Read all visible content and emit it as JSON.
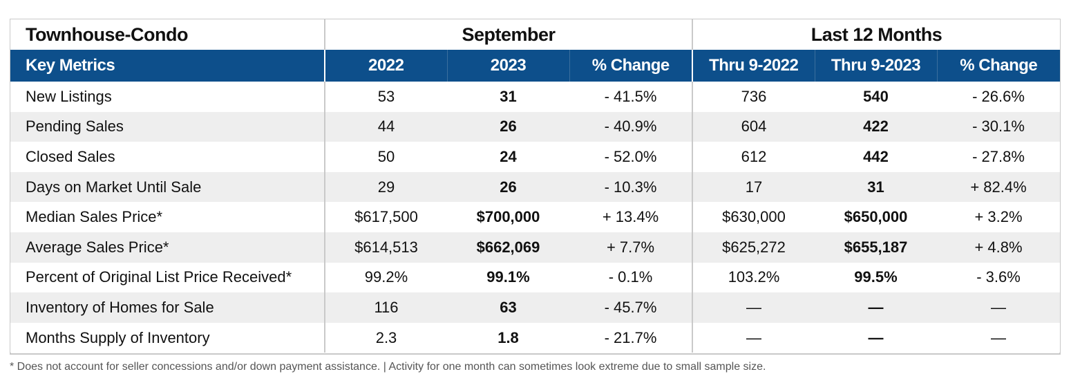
{
  "section_title": "Townhouse-Condo",
  "groups": [
    "September",
    "Last 12 Months"
  ],
  "headers": [
    "Key Metrics",
    "2022",
    "2023",
    "% Change",
    "Thru 9-2022",
    "Thru 9-2023",
    "% Change"
  ],
  "rows": [
    [
      "New Listings",
      "53",
      "31",
      "- 41.5%",
      "736",
      "540",
      "- 26.6%"
    ],
    [
      "Pending Sales",
      "44",
      "26",
      "- 40.9%",
      "604",
      "422",
      "- 30.1%"
    ],
    [
      "Closed Sales",
      "50",
      "24",
      "- 52.0%",
      "612",
      "442",
      "- 27.8%"
    ],
    [
      "Days on Market Until Sale",
      "29",
      "26",
      "- 10.3%",
      "17",
      "31",
      "+ 82.4%"
    ],
    [
      "Median Sales Price*",
      "$617,500",
      "$700,000",
      "+ 13.4%",
      "$630,000",
      "$650,000",
      "+ 3.2%"
    ],
    [
      "Average Sales Price*",
      "$614,513",
      "$662,069",
      "+ 7.7%",
      "$625,272",
      "$655,187",
      "+ 4.8%"
    ],
    [
      "Percent of Original List Price Received*",
      "99.2%",
      "99.1%",
      "- 0.1%",
      "103.2%",
      "99.5%",
      "- 3.6%"
    ],
    [
      "Inventory of Homes for Sale",
      "116",
      "63",
      "- 45.7%",
      "—",
      "—",
      "—"
    ],
    [
      "Months Supply of Inventory",
      "2.3",
      "1.8",
      "- 21.7%",
      "—",
      "—",
      "—"
    ]
  ],
  "footnote": "* Does not account for seller concessions and/or down payment assistance. | Activity for one month can sometimes look extreme due to small sample size.",
  "colors": {
    "header_bg": "#0d4f8b",
    "stripe": "#eeeeee",
    "border": "#c9c9c9"
  }
}
